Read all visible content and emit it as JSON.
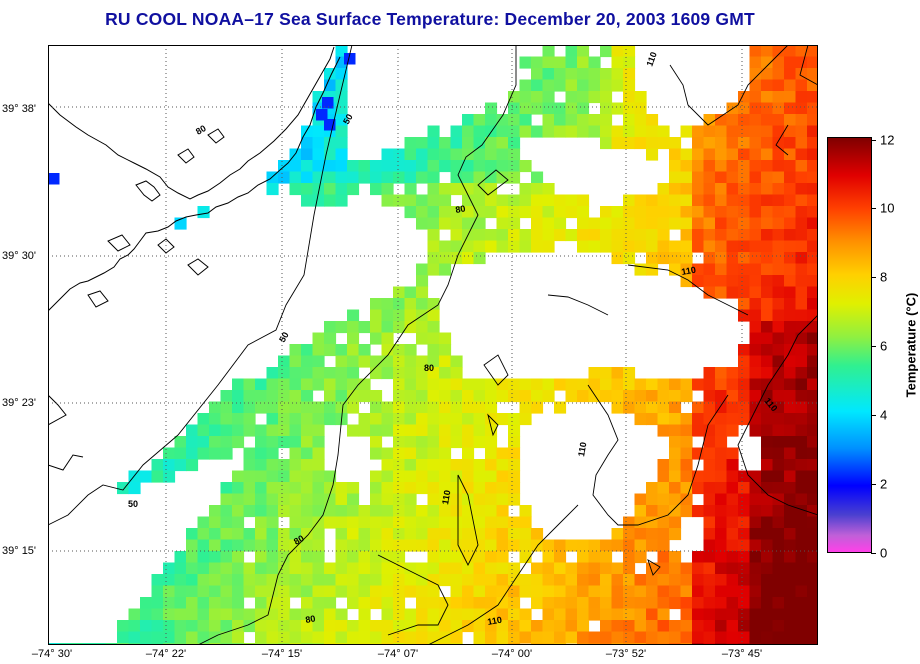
{
  "title": "RU COOL  NOAA–17  Sea Surface Temperature:  December 20, 2003 1609 GMT",
  "y_labels": [
    "39° 38'",
    "39° 30'",
    "39° 23'",
    "39° 15'"
  ],
  "x_labels": [
    "–74° 30'",
    "–74° 22'",
    "–74° 15'",
    "–74° 07'",
    "–74° 00'",
    "–73° 52'",
    "–73° 45'"
  ],
  "contour_labels": [
    "50",
    "50",
    "50",
    "80",
    "80",
    "80",
    "80",
    "80",
    "110",
    "110",
    "110",
    "110",
    "110",
    "110"
  ],
  "colorbar": {
    "label": "Temperature (°C)",
    "ticks": [
      "12",
      "10",
      "8",
      "6",
      "4",
      "2",
      "0"
    ],
    "min": 0,
    "max": 12
  },
  "colors": {
    "title": "#1010a0",
    "cold": "#0000ff",
    "mid": "#e0f000",
    "warm": "#ff4000"
  }
}
